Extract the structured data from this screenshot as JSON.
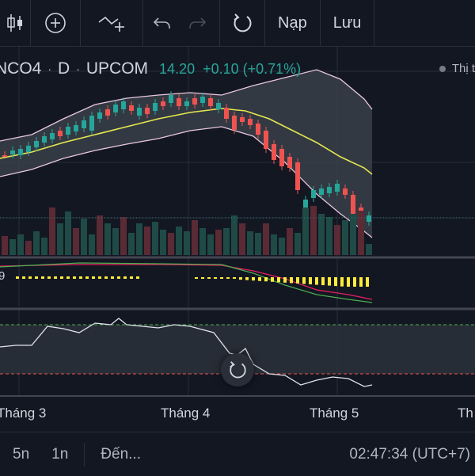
{
  "toolbar": {
    "load_label": "Nạp",
    "save_label": "Lưu"
  },
  "symbol": {
    "name": "NCO4",
    "interval": "D",
    "exchange": "UPCOM",
    "last_price": "14.20",
    "change": "+0.10 (+0.71%)"
  },
  "market_status": "Thị t",
  "indicator_value": "9",
  "x_axis": {
    "labels": [
      "Tháng 3",
      "Tháng 4",
      "Tháng 5",
      "Th"
    ]
  },
  "bottom_bar": {
    "range_5d": "5n",
    "range_1d": "1n",
    "goto_label": "Đến...",
    "clock": "02:47:34 (UTC+7)"
  },
  "colors": {
    "up": "#26a69a",
    "down": "#ef5350",
    "background": "#131722",
    "ma_line": "#e5e84f",
    "band_line": "#e8c7e0"
  }
}
